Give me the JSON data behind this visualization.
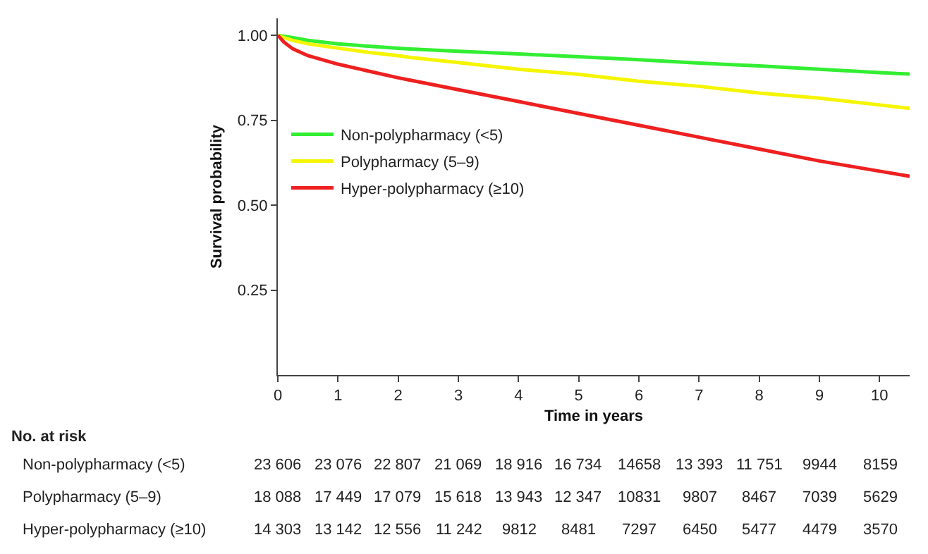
{
  "chart_data": {
    "type": "line",
    "xlabel": "Time in years",
    "ylabel": "Survival probability",
    "xlim": [
      0,
      10.5
    ],
    "xticks": [
      0,
      1,
      2,
      3,
      4,
      5,
      6,
      7,
      8,
      9,
      10
    ],
    "ylim": [
      0,
      1.05
    ],
    "yticks": [
      {
        "value": 0.25,
        "label": "0.25"
      },
      {
        "value": 0.5,
        "label": "0.50"
      },
      {
        "value": 0.75,
        "label": "0.75"
      },
      {
        "value": 1.0,
        "label": "1.00"
      }
    ],
    "legend": "left",
    "x": [
      0,
      0.1,
      0.25,
      0.5,
      1,
      1.5,
      2,
      2.2,
      3,
      4,
      5,
      6,
      7,
      8,
      9,
      10,
      10.5
    ],
    "series": [
      {
        "name": "Non-polypharmacy (<5)",
        "color": "#33ee33",
        "values": [
          1.0,
          0.997,
          0.993,
          0.985,
          0.975,
          0.968,
          0.962,
          0.96,
          0.953,
          0.945,
          0.937,
          0.928,
          0.918,
          0.91,
          0.9,
          0.89,
          0.886
        ]
      },
      {
        "name": "Polypharmacy (5–9)",
        "color": "#f5f500",
        "values": [
          1.0,
          0.993,
          0.985,
          0.975,
          0.962,
          0.95,
          0.94,
          0.935,
          0.92,
          0.9,
          0.885,
          0.865,
          0.85,
          0.83,
          0.815,
          0.795,
          0.785
        ]
      },
      {
        "name": "Hyper-polypharmacy (≥10)",
        "color": "#ee2020",
        "values": [
          1.0,
          0.98,
          0.96,
          0.94,
          0.915,
          0.895,
          0.875,
          0.868,
          0.84,
          0.805,
          0.77,
          0.735,
          0.7,
          0.665,
          0.63,
          0.6,
          0.585
        ]
      }
    ],
    "annotations": [
      "No. at risk",
      "Non-polypharmacy (<5)",
      "23 606",
      "23 076",
      "22 807",
      "21 069",
      "18 916",
      "16 734",
      "14658",
      "13 393",
      "11 751",
      "9944",
      "8159",
      "Polypharmacy (5–9)",
      "18 088",
      "17 449",
      "17 079",
      "15 618",
      "13 943",
      "12 347",
      "10831",
      "9807",
      "8467",
      "7039",
      "5629",
      "Hyper-polypharmacy (≥10)",
      "14 303",
      "13 142",
      "12 556",
      "11 242",
      "9812",
      "8481",
      "7297",
      "6450",
      "5477",
      "4479",
      "3570"
    ]
  }
}
